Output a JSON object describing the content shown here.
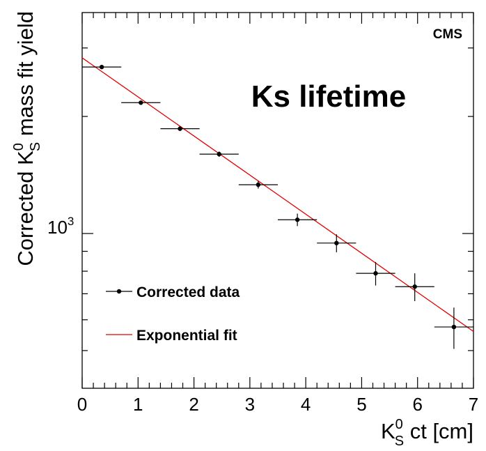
{
  "chart_data": {
    "type": "scatter",
    "title": "",
    "annotation": "Ks lifetime",
    "experiment_label": "CMS",
    "xlabel": {
      "main": "K",
      "sub": "S",
      "sup": "0",
      "rest": " ct [cm]"
    },
    "ylabel": {
      "main": "Corrected K",
      "sub": "S",
      "sup": "0",
      "rest": " mass fit yield"
    },
    "xlim": [
      0,
      7
    ],
    "ylim": [
      400,
      3700
    ],
    "yscale": "log",
    "x_ticks": [
      "0",
      "1",
      "2",
      "3",
      "4",
      "5",
      "6",
      "7"
    ],
    "y_tick_label": {
      "base": "10",
      "exp": "3",
      "value": 1000
    },
    "legend": {
      "position": "bottom-left",
      "entries": [
        {
          "label": "Corrected data",
          "marker": "point-with-errorbar"
        },
        {
          "label": "Exponential fit",
          "marker": "line"
        }
      ]
    },
    "series": [
      {
        "name": "Corrected data",
        "color": "#000000",
        "x": [
          0.35,
          1.05,
          1.75,
          2.45,
          3.15,
          3.85,
          4.55,
          5.25,
          5.95,
          6.65
        ],
        "xerr": [
          0.35,
          0.35,
          0.35,
          0.35,
          0.35,
          0.35,
          0.35,
          0.35,
          0.35,
          0.35
        ],
        "y": [
          2680,
          2170,
          1860,
          1600,
          1335,
          1085,
          945,
          790,
          730,
          575
        ],
        "yerr": [
          30,
          25,
          25,
          25,
          30,
          40,
          50,
          55,
          60,
          70
        ]
      },
      {
        "name": "Exponential fit",
        "color": "#e00000",
        "x": [
          0,
          7
        ],
        "y": [
          2830,
          560
        ]
      }
    ]
  }
}
